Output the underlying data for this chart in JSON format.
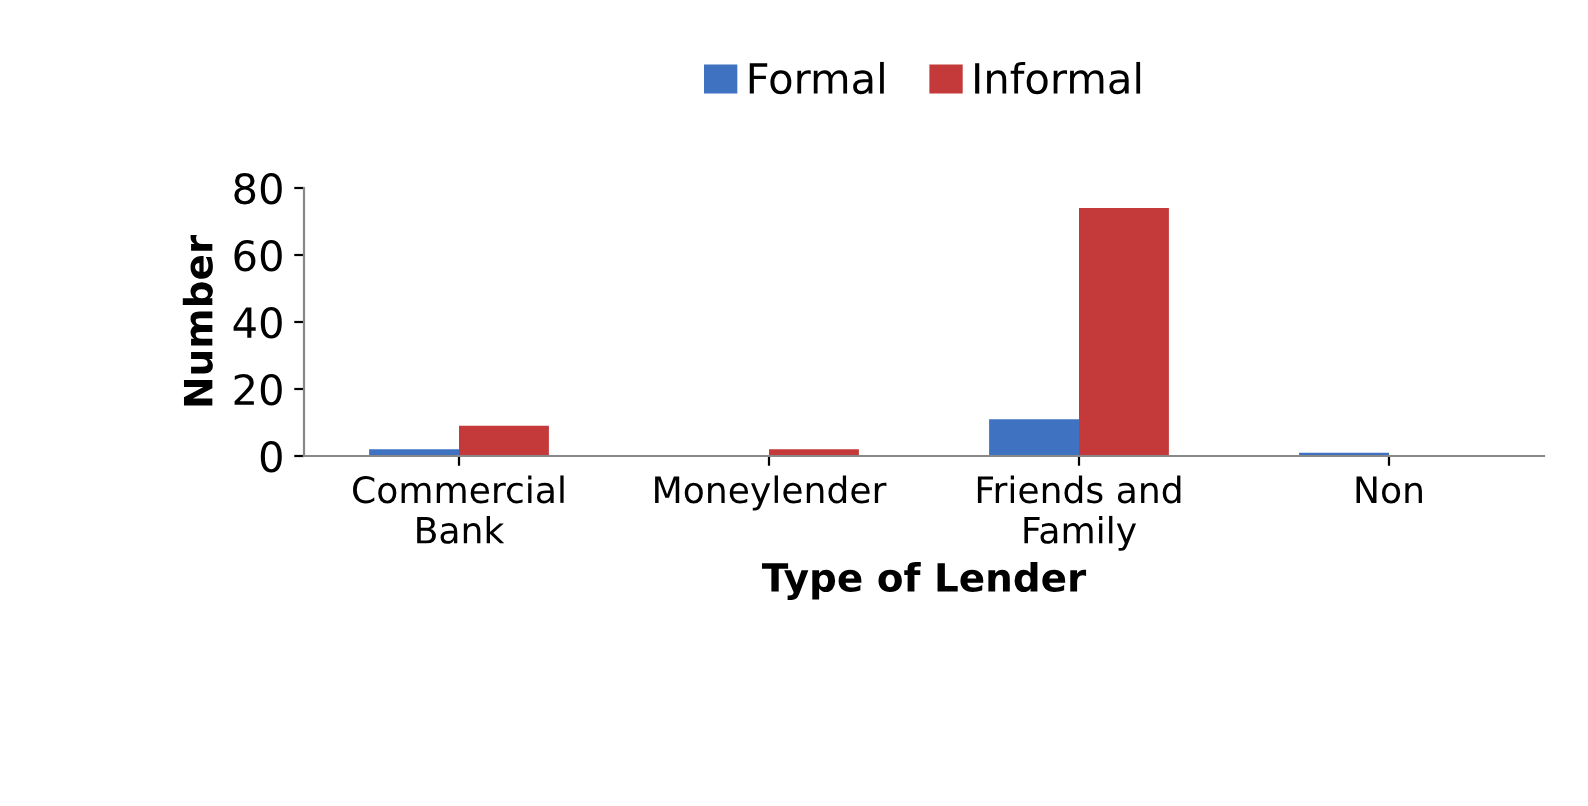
{
  "chart_data": {
    "type": "bar",
    "xlabel": "Type of Lender",
    "ylabel": "Number",
    "categories": [
      "Commercial\nBank",
      "Moneylender",
      "Friends and\nFamily",
      "Non"
    ],
    "series": [
      {
        "name": "Formal",
        "color": "#3f73c2",
        "values": [
          2,
          0,
          11,
          1
        ]
      },
      {
        "name": "Informal",
        "color": "#c43a3a",
        "values": [
          9,
          2,
          74,
          0
        ]
      }
    ],
    "ylim": [
      0,
      80
    ],
    "yticks": [
      0,
      20,
      40,
      60,
      80
    ],
    "grid": false,
    "legend": "top"
  }
}
